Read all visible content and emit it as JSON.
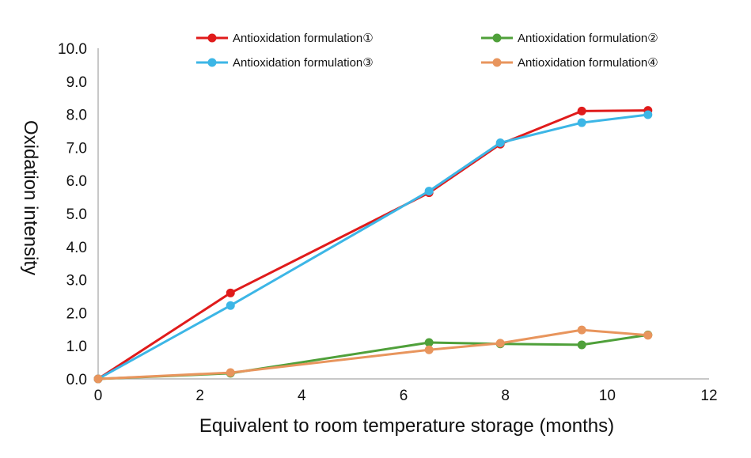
{
  "chart_data": {
    "type": "line",
    "title": "",
    "xlabel": "Equivalent to room temperature storage (months)",
    "ylabel": "Oxidation intensity",
    "xlim": [
      0,
      12
    ],
    "ylim": [
      0,
      10
    ],
    "xticks": [
      "0",
      "2",
      "4",
      "6",
      "8",
      "10",
      "12"
    ],
    "yticks": [
      "0.0",
      "1.0",
      "2.0",
      "3.0",
      "4.0",
      "5.0",
      "6.0",
      "7.0",
      "8.0",
      "9.0",
      "10.0"
    ],
    "grid": false,
    "legend_position": "top",
    "series": [
      {
        "name": "Antioxidation formulation①",
        "color": "#e01b1b",
        "x": [
          0,
          2.6,
          6.5,
          7.9,
          9.5,
          10.8
        ],
        "y": [
          0.0,
          2.6,
          5.63,
          7.1,
          8.1,
          8.12
        ]
      },
      {
        "name": "Antioxidation formulation②",
        "color": "#4fa03a",
        "x": [
          0,
          2.6,
          6.5,
          7.9,
          9.5,
          10.8
        ],
        "y": [
          0.0,
          0.17,
          1.1,
          1.06,
          1.03,
          1.33
        ]
      },
      {
        "name": "Antioxidation formulation③",
        "color": "#3cb6e6",
        "x": [
          0,
          2.6,
          6.5,
          7.9,
          9.5,
          10.8
        ],
        "y": [
          0.0,
          2.22,
          5.68,
          7.14,
          7.75,
          7.99
        ]
      },
      {
        "name": "Antioxidation formulation④",
        "color": "#e8955d",
        "x": [
          0,
          2.6,
          6.5,
          7.9,
          9.5,
          10.8
        ],
        "y": [
          0.0,
          0.19,
          0.88,
          1.08,
          1.48,
          1.32
        ]
      }
    ]
  }
}
